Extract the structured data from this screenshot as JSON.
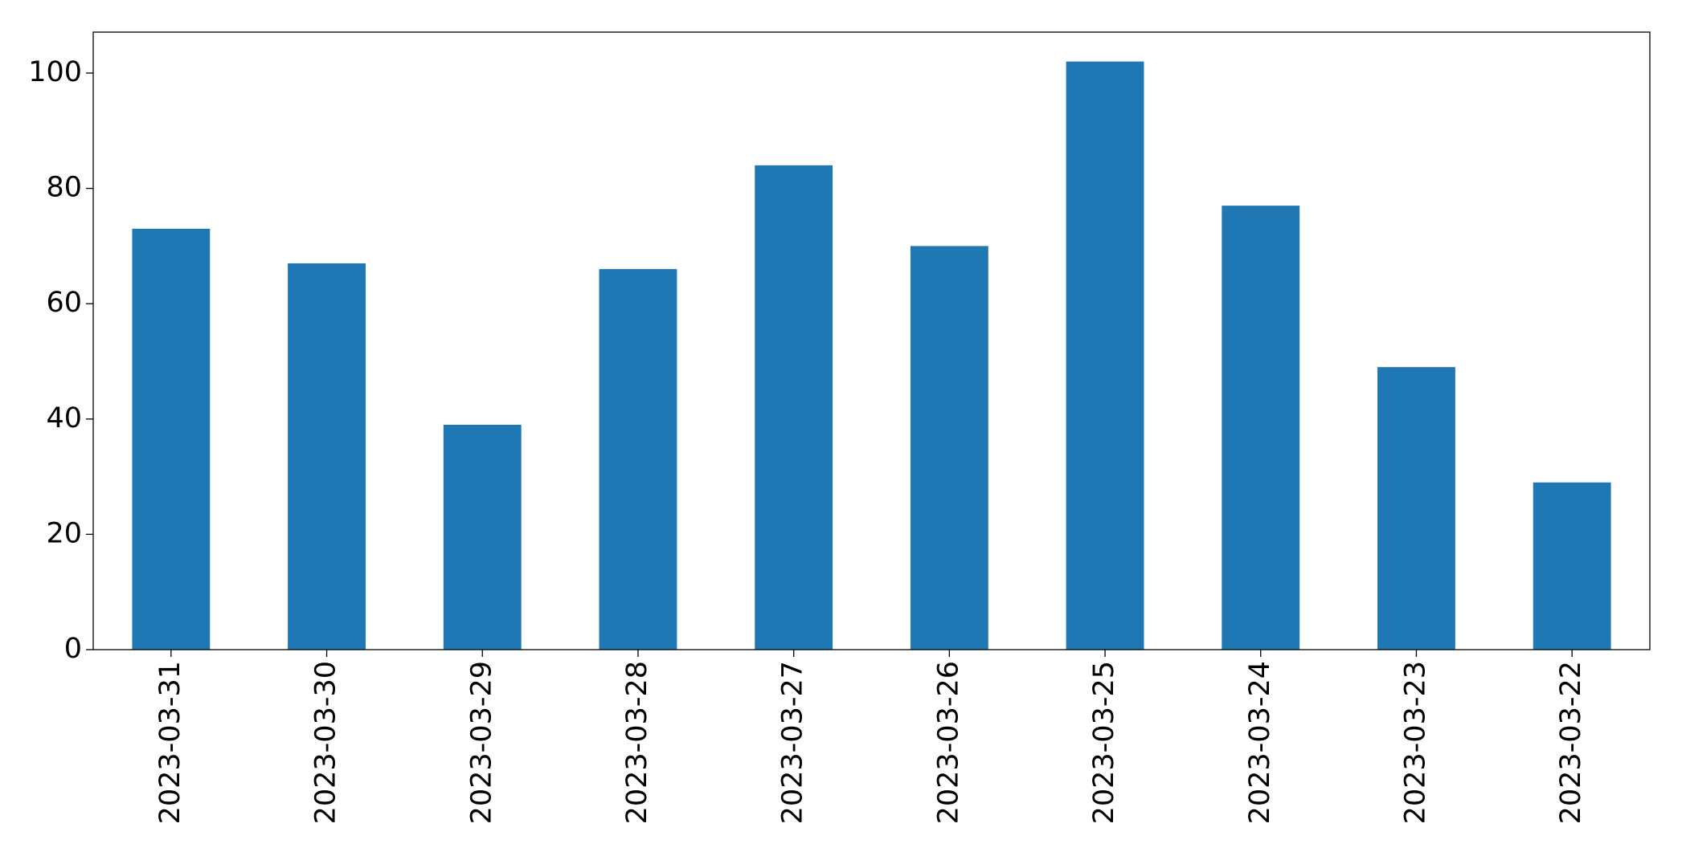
{
  "chart_data": {
    "type": "bar",
    "categories": [
      "2023-03-31",
      "2023-03-30",
      "2023-03-29",
      "2023-03-28",
      "2023-03-27",
      "2023-03-26",
      "2023-03-25",
      "2023-03-24",
      "2023-03-23",
      "2023-03-22"
    ],
    "values": [
      73,
      67,
      39,
      66,
      84,
      70,
      102,
      77,
      49,
      29
    ],
    "color": "#1f77b4",
    "ylim": [
      0,
      107.1
    ],
    "yticks": [
      0,
      20,
      40,
      60,
      80,
      100
    ],
    "grid": false
  }
}
